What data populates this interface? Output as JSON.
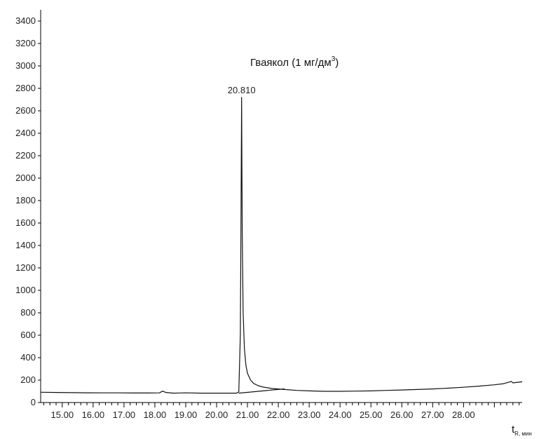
{
  "chart_data": {
    "type": "line",
    "annotation": {
      "text": "Гваякол (1 мг/дм",
      "sup": "3",
      "close": ")"
    },
    "peak_label": {
      "text": "20.810",
      "x": 20.81,
      "y": 2720
    },
    "xlabel": {
      "main": "t",
      "sub": "R, мин"
    },
    "ylabel": "",
    "xlim": [
      14.3,
      29.9
    ],
    "ylim": [
      0,
      3500
    ],
    "y_ticks": [
      0,
      200,
      400,
      600,
      800,
      1000,
      1200,
      1400,
      1600,
      1800,
      2000,
      2200,
      2400,
      2600,
      2800,
      3000,
      3200,
      3400
    ],
    "x_tick_labels": [
      {
        "x": 15.0,
        "label": "15.00"
      },
      {
        "x": 16.0,
        "label": "16.00"
      },
      {
        "x": 17.0,
        "label": "17.00"
      },
      {
        "x": 18.0,
        "label": "18.00"
      },
      {
        "x": 19.0,
        "label": "19.00"
      },
      {
        "x": 20.0,
        "label": "20.00"
      },
      {
        "x": 21.0,
        "label": "21.00"
      },
      {
        "x": 22.0,
        "label": "22.00"
      },
      {
        "x": 23.0,
        "label": "23.00"
      },
      {
        "x": 24.0,
        "label": "24.00"
      },
      {
        "x": 25.0,
        "label": "25.00"
      },
      {
        "x": 26.0,
        "label": "26.00"
      },
      {
        "x": 27.0,
        "label": "27.00"
      },
      {
        "x": 28.0,
        "label": "28.00"
      }
    ],
    "grid": false,
    "series": [
      {
        "color": "#111111",
        "points": [
          [
            14.3,
            92
          ],
          [
            14.8,
            90
          ],
          [
            15.3,
            88
          ],
          [
            15.8,
            87
          ],
          [
            16.3,
            86
          ],
          [
            16.8,
            86
          ],
          [
            17.3,
            85
          ],
          [
            17.8,
            85
          ],
          [
            18.15,
            86
          ],
          [
            18.25,
            102
          ],
          [
            18.35,
            90
          ],
          [
            18.6,
            84
          ],
          [
            19.0,
            86
          ],
          [
            19.5,
            84
          ],
          [
            20.0,
            84
          ],
          [
            20.4,
            84
          ],
          [
            20.65,
            84
          ],
          [
            20.72,
            95
          ],
          [
            20.77,
            600
          ],
          [
            20.79,
            1600
          ],
          [
            20.81,
            2720
          ],
          [
            20.83,
            1500
          ],
          [
            20.86,
            800
          ],
          [
            20.9,
            480
          ],
          [
            20.95,
            330
          ],
          [
            21.0,
            260
          ],
          [
            21.1,
            200
          ],
          [
            21.2,
            170
          ],
          [
            21.35,
            150
          ],
          [
            21.5,
            138
          ],
          [
            21.8,
            125
          ],
          [
            22.2,
            116
          ],
          [
            22.6,
            108
          ],
          [
            23.0,
            104
          ],
          [
            23.5,
            100
          ],
          [
            24.0,
            100
          ],
          [
            24.5,
            102
          ],
          [
            25.0,
            104
          ],
          [
            25.5,
            108
          ],
          [
            26.0,
            112
          ],
          [
            26.5,
            116
          ],
          [
            27.0,
            121
          ],
          [
            27.5,
            128
          ],
          [
            28.0,
            136
          ],
          [
            28.5,
            146
          ],
          [
            29.0,
            158
          ],
          [
            29.3,
            168
          ],
          [
            29.55,
            188
          ],
          [
            29.6,
            175
          ],
          [
            29.9,
            185
          ]
        ]
      },
      {
        "color": "#111111",
        "points": [
          [
            20.72,
            84
          ],
          [
            22.2,
            122
          ]
        ]
      }
    ]
  }
}
